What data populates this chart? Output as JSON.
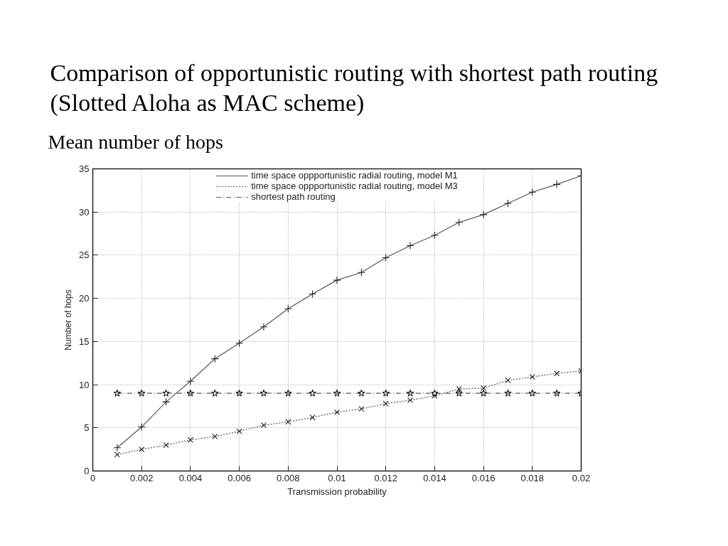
{
  "chart_data": {
    "type": "line",
    "title": "Comparison of opportunistic routing with shortest path routing\n(Slotted Aloha as MAC scheme)",
    "subtitle": "Mean number of hops",
    "xlabel": "Transmission probability",
    "ylabel": "Number of hops",
    "x": [
      0.001,
      0.002,
      0.003,
      0.004,
      0.005,
      0.006,
      0.007,
      0.008,
      0.009,
      0.01,
      0.011,
      0.012,
      0.013,
      0.014,
      0.015,
      0.016,
      0.017,
      0.018,
      0.019,
      0.02
    ],
    "series": [
      {
        "name": "time space oppportunistic radial routing, model M1",
        "color": "#555555",
        "line_style": "solid",
        "marker": "cross",
        "values": [
          2.7,
          5.1,
          8.0,
          10.4,
          13.0,
          14.8,
          16.7,
          18.8,
          20.5,
          22.1,
          23.0,
          24.7,
          26.1,
          27.3,
          28.8,
          29.7,
          31.0,
          32.3,
          33.2,
          34.2
        ]
      },
      {
        "name": "time space oppportunistic radial routing, model M3",
        "color": "#555555",
        "line_style": "dotted",
        "marker": "x",
        "values": [
          1.9,
          2.5,
          3.0,
          3.6,
          4.0,
          4.6,
          5.3,
          5.7,
          6.2,
          6.8,
          7.2,
          7.8,
          8.2,
          8.7,
          9.5,
          9.6,
          10.5,
          10.9,
          11.3,
          11.6
        ]
      },
      {
        "name": "shortest path routing",
        "color": "#555555",
        "line_style": "dashdot",
        "marker": "star",
        "values": [
          9.0,
          9.0,
          9.0,
          9.0,
          9.0,
          9.0,
          9.0,
          9.0,
          9.0,
          9.0,
          9.0,
          9.0,
          9.0,
          9.0,
          9.0,
          9.0,
          9.0,
          9.0,
          9.0,
          9.0
        ]
      }
    ],
    "xlim": [
      0,
      0.02
    ],
    "ylim": [
      0,
      35
    ],
    "xticks": [
      0,
      0.002,
      0.004,
      0.006,
      0.008,
      0.01,
      0.012,
      0.014,
      0.016,
      0.018,
      0.02
    ],
    "yticks": [
      0,
      5,
      10,
      15,
      20,
      25,
      30,
      35
    ],
    "grid": true,
    "legend": "top"
  }
}
